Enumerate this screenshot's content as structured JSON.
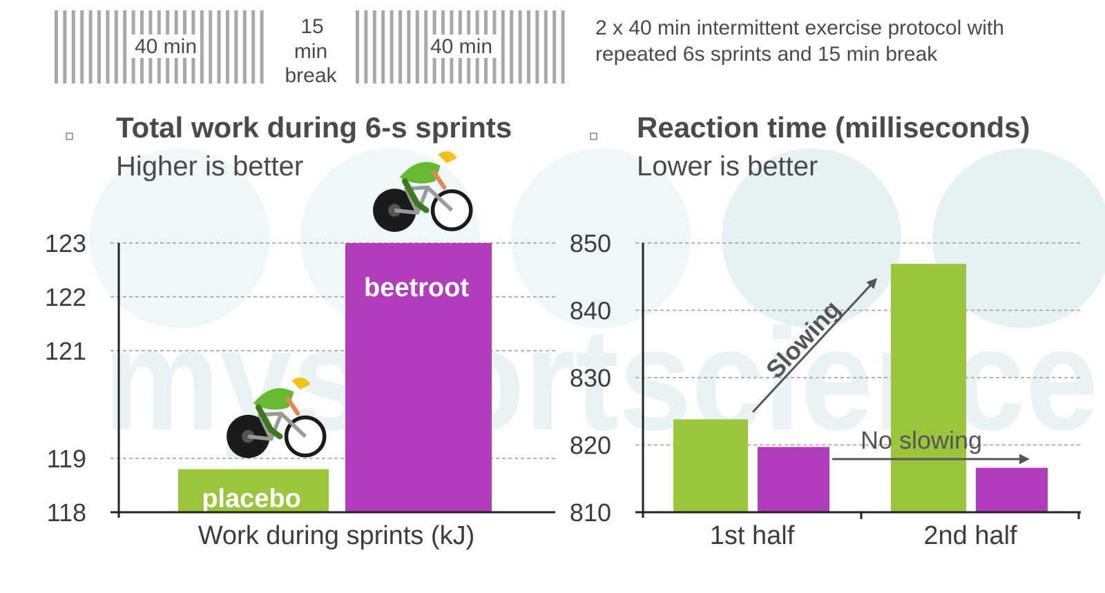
{
  "protocol": {
    "block1_label": "40 min",
    "break_lines": [
      "15",
      "min",
      "break"
    ],
    "block2_label": "40 min",
    "description_lines": [
      "2 x 40 min intermittent exercise protocol with",
      "repeated 6s sprints and 15 min break"
    ]
  },
  "watermark": "mysportscience",
  "colors": {
    "placebo": "#9bc53d",
    "beetroot": "#b13cbc",
    "grid": "#999999",
    "axis": "#222222",
    "protocol_bars": "#a8a8a8"
  },
  "chart_data": [
    {
      "type": "bar",
      "title": "Total work during 6-s sprints",
      "subtitle": "Higher is better",
      "xlabel": "Work during sprints (kJ)",
      "ylabel": "",
      "ylim": [
        118,
        123
      ],
      "yticks": [
        "118",
        "119",
        "121",
        "122",
        "123"
      ],
      "grid": true,
      "categories": [
        "placebo",
        "beetroot"
      ],
      "values": [
        118.8,
        123.0
      ],
      "bar_labels": [
        "placebo",
        "beetroot"
      ],
      "icons": [
        "cyclist-icon",
        "cyclist-icon"
      ]
    },
    {
      "type": "bar",
      "title": "Reaction time (milliseconds)",
      "subtitle": "Lower is better",
      "xlabel": "",
      "ylabel": "",
      "ylim": [
        810,
        850
      ],
      "yticks": [
        "810",
        "820",
        "830",
        "840",
        "850"
      ],
      "grid": true,
      "categories": [
        "1st half",
        "2nd half"
      ],
      "series": [
        {
          "values": [
            823.8,
            846.9
          ]
        },
        {
          "values": [
            819.7,
            816.6
          ]
        }
      ],
      "annotations": [
        {
          "text": "Slowing",
          "style": "arrow-up-right"
        },
        {
          "text": "No slowing",
          "style": "arrow-right"
        }
      ]
    }
  ]
}
